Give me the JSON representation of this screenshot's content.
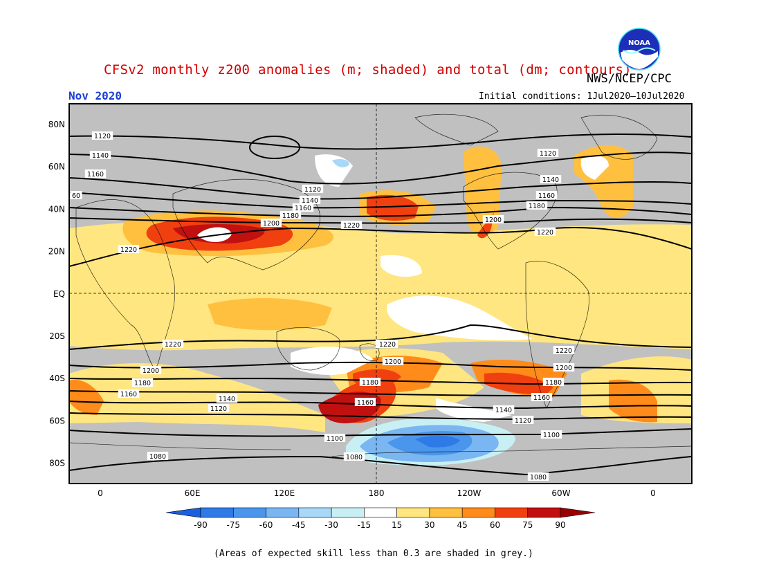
{
  "title": "CFSv2 monthly z200 anomalies (m; shaded) and total (dm; contours)",
  "agency": "NWS/NCEP/CPC",
  "logo_text": "NOAA",
  "period": "Nov 2020",
  "initial_conditions": "Initial conditions: 1Jul2020–10Jul2020",
  "footnote": "(Areas of expected skill less than 0.3 are shaded in grey.)",
  "map": {
    "lat_labels": [
      "80N",
      "60N",
      "40N",
      "20N",
      "EQ",
      "20S",
      "40S",
      "60S",
      "80S"
    ],
    "lon_labels": [
      "0",
      "60E",
      "120E",
      "180",
      "120W",
      "60W",
      "0"
    ],
    "contour_labels": [
      {
        "text": "1120"
      },
      {
        "text": "1140"
      },
      {
        "text": "1160"
      },
      {
        "text": "60"
      },
      {
        "text": "1120"
      },
      {
        "text": "1140"
      },
      {
        "text": "1160"
      },
      {
        "text": "1180"
      },
      {
        "text": "1200"
      },
      {
        "text": "1220"
      },
      {
        "text": "1220"
      },
      {
        "text": "1120"
      },
      {
        "text": "1140"
      },
      {
        "text": "1160"
      },
      {
        "text": "1180"
      },
      {
        "text": "1200"
      },
      {
        "text": "1220"
      },
      {
        "text": "1220"
      },
      {
        "text": "1220"
      },
      {
        "text": "1200"
      },
      {
        "text": "1180"
      },
      {
        "text": "1160"
      },
      {
        "text": "1140"
      },
      {
        "text": "1120"
      },
      {
        "text": "1220"
      },
      {
        "text": "1200"
      },
      {
        "text": "1180"
      },
      {
        "text": "1160"
      },
      {
        "text": "1140"
      },
      {
        "text": "1120"
      },
      {
        "text": "1100"
      },
      {
        "text": "1080"
      },
      {
        "text": "1080"
      },
      {
        "text": "1220"
      },
      {
        "text": "1200"
      },
      {
        "text": "1180"
      },
      {
        "text": "1160"
      },
      {
        "text": "1140"
      },
      {
        "text": "1120"
      },
      {
        "text": "1100"
      },
      {
        "text": "1080"
      }
    ]
  },
  "colorbar": {
    "labels": [
      "-90",
      "-75",
      "-60",
      "-45",
      "-30",
      "-15",
      "15",
      "30",
      "45",
      "60",
      "75",
      "90"
    ],
    "colors": [
      "#1c5ee0",
      "#2e7ae6",
      "#4a96ec",
      "#7ab6f2",
      "#a8d8f8",
      "#c8f0f4",
      "#ffffff",
      "#ffe680",
      "#ffc040",
      "#ff8c1a",
      "#f04010",
      "#c01010",
      "#9a0000"
    ]
  }
}
